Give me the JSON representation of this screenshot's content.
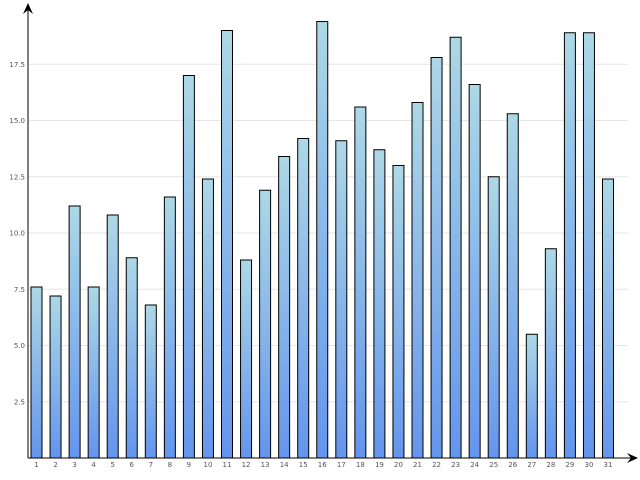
{
  "chart_data": {
    "type": "bar",
    "title": "",
    "xlabel": "",
    "ylabel": "",
    "categories": [
      "1",
      "2",
      "3",
      "4",
      "5",
      "6",
      "7",
      "8",
      "9",
      "10",
      "11",
      "12",
      "13",
      "14",
      "15",
      "16",
      "17",
      "18",
      "19",
      "20",
      "21",
      "22",
      "23",
      "24",
      "25",
      "26",
      "27",
      "28",
      "29",
      "30",
      "31"
    ],
    "values": [
      7.6,
      7.2,
      11.2,
      7.6,
      10.8,
      8.9,
      6.8,
      11.6,
      17.0,
      12.4,
      19.0,
      8.8,
      11.9,
      13.4,
      14.2,
      19.4,
      14.1,
      15.6,
      13.7,
      13.0,
      15.8,
      17.8,
      18.7,
      16.6,
      12.5,
      15.3,
      5.5,
      9.3,
      18.9,
      18.9,
      12.4
    ],
    "ylim": [
      0,
      20
    ],
    "yticks": [
      2.5,
      5.0,
      7.5,
      10.0,
      12.5,
      15.0,
      17.5
    ],
    "ytick_labels": [
      "2.5",
      "5.0",
      "7.5",
      "10.0",
      "12.5",
      "15.0",
      "17.5"
    ],
    "grid": true,
    "colors": {
      "bar_top": "#add8e6",
      "bar_bottom": "#6495ed",
      "grid": "#e6e6e6",
      "axis": "#000000"
    }
  }
}
